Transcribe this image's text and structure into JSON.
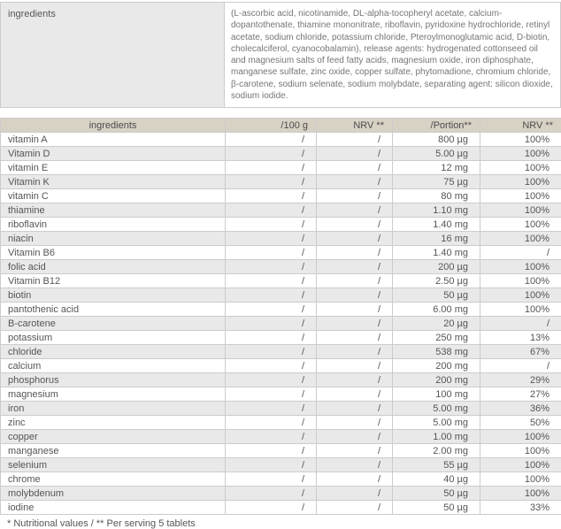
{
  "ingredients_section": {
    "label": "ingredients",
    "text": "(L-ascorbic acid, nicotinamide, DL-alpha-tocopheryl acetate, calcium-dopantothenate, thiamine mononitrate, riboflavin, pyridoxine hydrochloride, retinyl acetate, sodium chloride, potassium chloride, Pteroylmonoglutamic acid, D-biotin, cholecalciferol, cyanocobalamin), release agents: hydrogenated cottonseed oil and magnesium salts of feed fatty acids, magnesium oxide, iron diphosphate, manganese sulfate, zinc oxide, copper sulfate, phytomadione, chromium chloride, β-carotene, sodium selenate, sodium molybdate, separating agent: silicon dioxide, sodium iodide."
  },
  "table": {
    "headers": [
      "ingredients",
      "/100 g",
      "NRV **",
      "/Portion**",
      "NRV **"
    ],
    "rows": [
      {
        "name": "vitamin A",
        "per100g": "/",
        "nrv100g": "/",
        "portion": "800 µg",
        "nrv_portion": "100%"
      },
      {
        "name": "Vitamin D",
        "per100g": "/",
        "nrv100g": "/",
        "portion": "5.00 µg",
        "nrv_portion": "100%"
      },
      {
        "name": "vitamin E",
        "per100g": "/",
        "nrv100g": "/",
        "portion": "12 mg",
        "nrv_portion": "100%"
      },
      {
        "name": "Vitamin K",
        "per100g": "/",
        "nrv100g": "/",
        "portion": "75 µg",
        "nrv_portion": "100%"
      },
      {
        "name": "vitamin C",
        "per100g": "/",
        "nrv100g": "/",
        "portion": "80 mg",
        "nrv_portion": "100%"
      },
      {
        "name": "thiamine",
        "per100g": "/",
        "nrv100g": "/",
        "portion": "1.10 mg",
        "nrv_portion": "100%"
      },
      {
        "name": "riboflavin",
        "per100g": "/",
        "nrv100g": "/",
        "portion": "1.40 mg",
        "nrv_portion": "100%"
      },
      {
        "name": "niacin",
        "per100g": "/",
        "nrv100g": "/",
        "portion": "16 mg",
        "nrv_portion": "100%"
      },
      {
        "name": "Vitamin B6",
        "per100g": "/",
        "nrv100g": "/",
        "portion": "1.40 mg",
        "nrv_portion": "/"
      },
      {
        "name": "folic acid",
        "per100g": "/",
        "nrv100g": "/",
        "portion": "200 µg",
        "nrv_portion": "100%"
      },
      {
        "name": "Vitamin B12",
        "per100g": "/",
        "nrv100g": "/",
        "portion": "2.50 µg",
        "nrv_portion": "100%"
      },
      {
        "name": "biotin",
        "per100g": "/",
        "nrv100g": "/",
        "portion": "50 µg",
        "nrv_portion": "100%"
      },
      {
        "name": "pantothenic acid",
        "per100g": "/",
        "nrv100g": "/",
        "portion": "6.00 mg",
        "nrv_portion": "100%"
      },
      {
        "name": "B-carotene",
        "per100g": "/",
        "nrv100g": "/",
        "portion": "20 µg",
        "nrv_portion": "/"
      },
      {
        "name": "potassium",
        "per100g": "/",
        "nrv100g": "/",
        "portion": "250 mg",
        "nrv_portion": "13%"
      },
      {
        "name": "chloride",
        "per100g": "/",
        "nrv100g": "/",
        "portion": "538 mg",
        "nrv_portion": "67%"
      },
      {
        "name": "calcium",
        "per100g": "/",
        "nrv100g": "/",
        "portion": "200 mg",
        "nrv_portion": "/"
      },
      {
        "name": "phosphorus",
        "per100g": "/",
        "nrv100g": "/",
        "portion": "200 mg",
        "nrv_portion": "29%"
      },
      {
        "name": "magnesium",
        "per100g": "/",
        "nrv100g": "/",
        "portion": "100 mg",
        "nrv_portion": "27%"
      },
      {
        "name": "iron",
        "per100g": "/",
        "nrv100g": "/",
        "portion": "5.00 mg",
        "nrv_portion": "36%"
      },
      {
        "name": "zinc",
        "per100g": "/",
        "nrv100g": "/",
        "portion": "5.00 mg",
        "nrv_portion": "50%"
      },
      {
        "name": "copper",
        "per100g": "/",
        "nrv100g": "/",
        "portion": "1.00 mg",
        "nrv_portion": "100%"
      },
      {
        "name": "manganese",
        "per100g": "/",
        "nrv100g": "/",
        "portion": "2.00 mg",
        "nrv_portion": "100%"
      },
      {
        "name": "selenium",
        "per100g": "/",
        "nrv100g": "/",
        "portion": "55 µg",
        "nrv_portion": "100%"
      },
      {
        "name": "chrome",
        "per100g": "/",
        "nrv100g": "/",
        "portion": "40 µg",
        "nrv_portion": "100%"
      },
      {
        "name": "molybdenum",
        "per100g": "/",
        "nrv100g": "/",
        "portion": "50 µg",
        "nrv_portion": "100%"
      },
      {
        "name": "iodine",
        "per100g": "/",
        "nrv100g": "/",
        "portion": "50 µg",
        "nrv_portion": "33%"
      }
    ]
  },
  "footer": {
    "note": "* Nutritional values / ** Per serving 5 tablets"
  },
  "colors": {
    "header_bg": "#d8d2c5",
    "alt_row_bg": "#e9e9e9",
    "label_cell_bg": "#e9e9e9",
    "border": "#cccccc",
    "text": "#555555",
    "ingredients_text": "#767676"
  }
}
